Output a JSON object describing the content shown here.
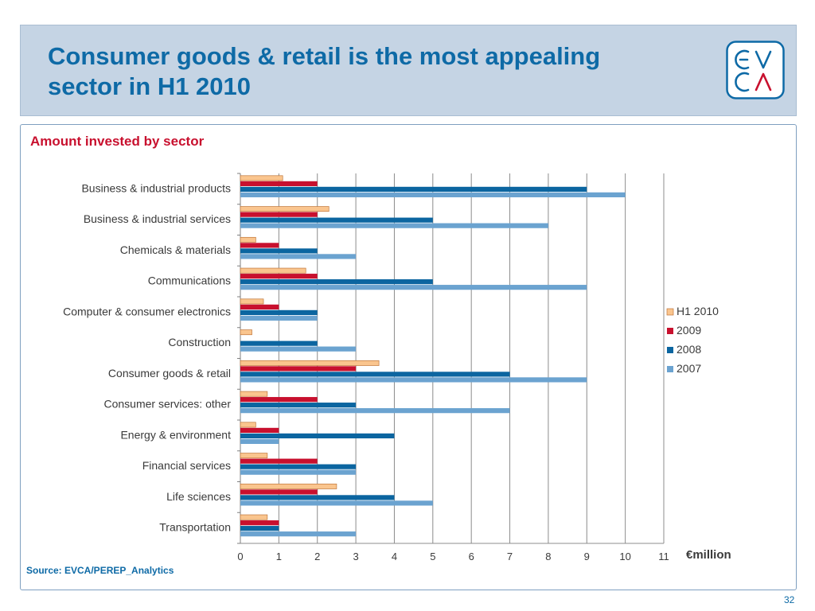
{
  "header": {
    "title_line1": "Consumer goods & retail is the most appealing",
    "title_line2": "sector in H1 2010",
    "logo_text": "EVCA"
  },
  "subtitle": "Amount invested by sector",
  "source": "Source: EVCA/PEREP_Analytics",
  "page_number": "32",
  "colors": {
    "title": "#0e6aa6",
    "subtitle": "#c8102e",
    "header_bg": "#c5d4e4"
  },
  "chart_data": {
    "type": "bar",
    "orientation": "horizontal",
    "categories": [
      "Business & industrial products",
      "Business & industrial services",
      "Chemicals & materials",
      "Communications",
      "Computer & consumer electronics",
      "Construction",
      "Consumer goods & retail",
      "Consumer services: other",
      "Energy & environment",
      "Financial services",
      "Life sciences",
      "Transportation"
    ],
    "series": [
      {
        "name": "H1 2010",
        "color": "#fac58e",
        "values": [
          1.1,
          2.3,
          0.4,
          1.7,
          0.6,
          0.3,
          3.6,
          0.7,
          0.4,
          0.7,
          2.5,
          0.7
        ]
      },
      {
        "name": "2009",
        "color": "#c8102e",
        "values": [
          2,
          2,
          1,
          2,
          1,
          0,
          3,
          2,
          1,
          2,
          2,
          1
        ]
      },
      {
        "name": "2008",
        "color": "#0b65a0",
        "values": [
          9,
          5,
          2,
          5,
          2,
          2,
          7,
          3,
          4,
          3,
          4,
          1
        ]
      },
      {
        "name": "2007",
        "color": "#6ba3d0",
        "values": [
          10,
          8,
          3,
          9,
          2,
          3,
          9,
          7,
          1,
          3,
          5,
          3
        ]
      }
    ],
    "xlim": [
      0,
      11
    ],
    "x_ticks": [
      "0",
      "1",
      "2",
      "3",
      "4",
      "5",
      "6",
      "7",
      "8",
      "9",
      "10",
      "11"
    ],
    "unit_label": "€million",
    "grid": "vertical",
    "legend": "right"
  }
}
